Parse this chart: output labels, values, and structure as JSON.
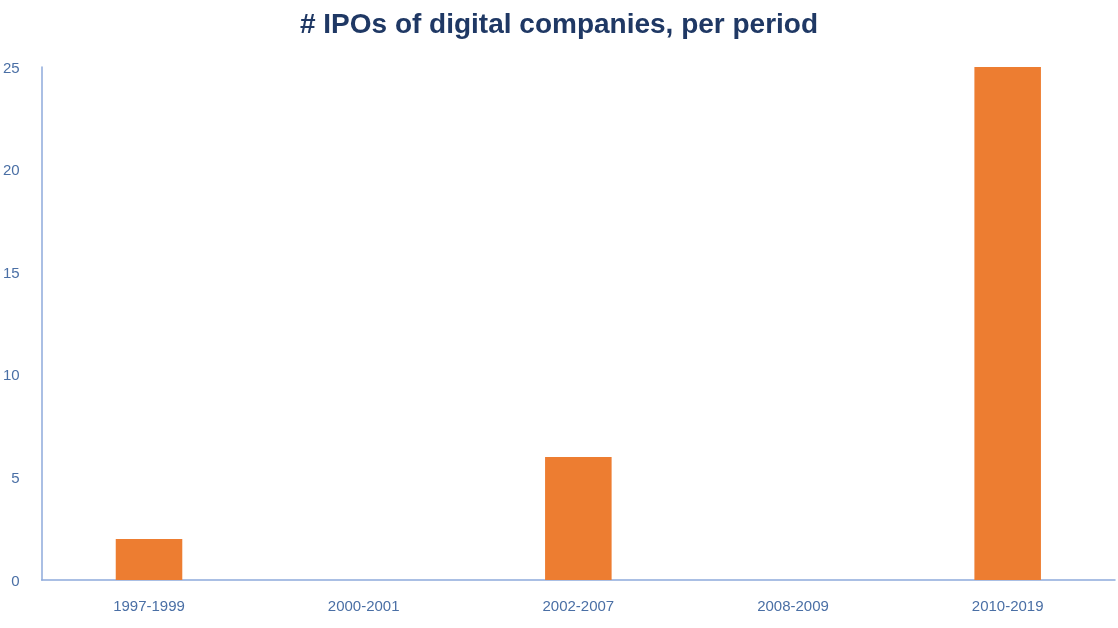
{
  "chart_data": {
    "type": "bar",
    "title": "# IPOs of digital companies, per period",
    "categories": [
      "1997-1999",
      "2000-2001",
      "2002-2007",
      "2008-2009",
      "2010-2019"
    ],
    "values": [
      2,
      0,
      6,
      0,
      25
    ],
    "color": "#ed7d31",
    "ylim": [
      0,
      25
    ],
    "yticks": [
      0,
      5,
      10,
      15,
      20,
      25
    ],
    "grid": false
  }
}
